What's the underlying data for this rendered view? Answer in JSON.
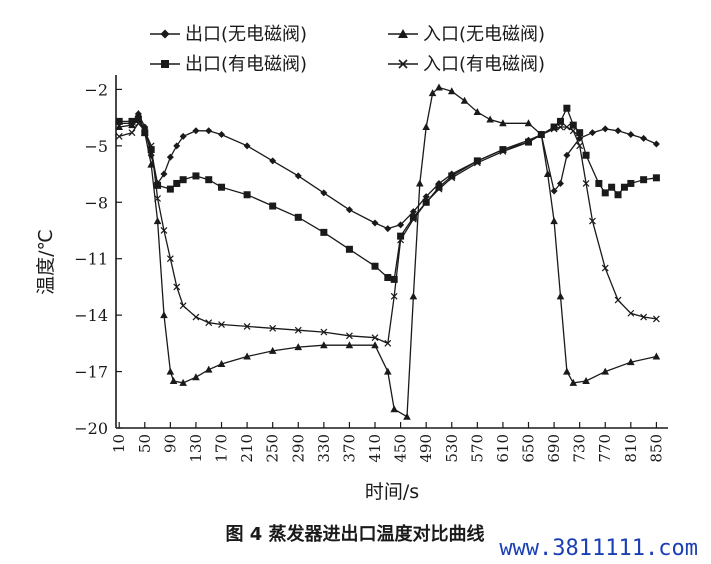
{
  "chart_data": {
    "type": "line",
    "caption": "图 4   蒸发器进出口温度对比曲线",
    "xlabel": "时间/s",
    "ylabel": "温度/℃",
    "xlim": [
      5,
      865
    ],
    "ylim": [
      -20,
      -1.5
    ],
    "yticks": [
      -2,
      -5,
      -8,
      -11,
      -14,
      -17,
      -20
    ],
    "xticks": [
      10,
      50,
      90,
      130,
      170,
      210,
      250,
      290,
      330,
      370,
      410,
      450,
      490,
      530,
      570,
      610,
      650,
      690,
      730,
      770,
      810,
      850
    ],
    "grid": false,
    "legend_position": "top-center",
    "series": [
      {
        "name": "出口(无电磁阀)",
        "marker": "diamond",
        "points": [
          [
            10,
            -3.8
          ],
          [
            30,
            -3.8
          ],
          [
            40,
            -3.3
          ],
          [
            50,
            -4.0
          ],
          [
            60,
            -5.5
          ],
          [
            70,
            -7.0
          ],
          [
            80,
            -6.5
          ],
          [
            90,
            -5.6
          ],
          [
            100,
            -5.0
          ],
          [
            110,
            -4.5
          ],
          [
            130,
            -4.2
          ],
          [
            150,
            -4.2
          ],
          [
            170,
            -4.4
          ],
          [
            210,
            -5.0
          ],
          [
            250,
            -5.8
          ],
          [
            290,
            -6.6
          ],
          [
            330,
            -7.5
          ],
          [
            370,
            -8.4
          ],
          [
            410,
            -9.1
          ],
          [
            430,
            -9.4
          ],
          [
            450,
            -9.2
          ],
          [
            470,
            -8.5
          ],
          [
            490,
            -7.7
          ],
          [
            510,
            -7.0
          ],
          [
            530,
            -6.5
          ],
          [
            570,
            -5.8
          ],
          [
            610,
            -5.2
          ],
          [
            650,
            -4.7
          ],
          [
            670,
            -4.4
          ],
          [
            690,
            -7.4
          ],
          [
            700,
            -7.0
          ],
          [
            710,
            -5.5
          ],
          [
            730,
            -4.6
          ],
          [
            750,
            -4.3
          ],
          [
            770,
            -4.1
          ],
          [
            790,
            -4.2
          ],
          [
            810,
            -4.4
          ],
          [
            830,
            -4.6
          ],
          [
            850,
            -4.9
          ]
        ]
      },
      {
        "name": "入口(无电磁阀)",
        "marker": "triangle",
        "points": [
          [
            10,
            -4.0
          ],
          [
            30,
            -3.9
          ],
          [
            40,
            -3.3
          ],
          [
            50,
            -4.3
          ],
          [
            60,
            -6.0
          ],
          [
            70,
            -9.0
          ],
          [
            80,
            -14.0
          ],
          [
            90,
            -17.0
          ],
          [
            95,
            -17.5
          ],
          [
            110,
            -17.6
          ],
          [
            130,
            -17.3
          ],
          [
            150,
            -16.9
          ],
          [
            170,
            -16.6
          ],
          [
            210,
            -16.2
          ],
          [
            250,
            -15.9
          ],
          [
            290,
            -15.7
          ],
          [
            330,
            -15.6
          ],
          [
            370,
            -15.6
          ],
          [
            410,
            -15.6
          ],
          [
            430,
            -17.0
          ],
          [
            440,
            -19.0
          ],
          [
            460,
            -19.4
          ],
          [
            470,
            -13.0
          ],
          [
            480,
            -7.0
          ],
          [
            490,
            -4.0
          ],
          [
            500,
            -2.2
          ],
          [
            510,
            -1.9
          ],
          [
            530,
            -2.1
          ],
          [
            550,
            -2.6
          ],
          [
            570,
            -3.2
          ],
          [
            590,
            -3.6
          ],
          [
            610,
            -3.8
          ],
          [
            650,
            -3.8
          ],
          [
            670,
            -4.4
          ],
          [
            680,
            -6.5
          ],
          [
            690,
            -9.0
          ],
          [
            700,
            -13.0
          ],
          [
            710,
            -17.0
          ],
          [
            720,
            -17.6
          ],
          [
            740,
            -17.5
          ],
          [
            770,
            -17.0
          ],
          [
            810,
            -16.5
          ],
          [
            850,
            -16.2
          ]
        ]
      },
      {
        "name": "出口(有电磁阀)",
        "marker": "square",
        "points": [
          [
            10,
            -3.7
          ],
          [
            30,
            -3.7
          ],
          [
            40,
            -3.6
          ],
          [
            50,
            -4.3
          ],
          [
            60,
            -5.2
          ],
          [
            70,
            -7.1
          ],
          [
            90,
            -7.3
          ],
          [
            100,
            -7.0
          ],
          [
            110,
            -6.8
          ],
          [
            130,
            -6.6
          ],
          [
            150,
            -6.8
          ],
          [
            170,
            -7.2
          ],
          [
            210,
            -7.6
          ],
          [
            250,
            -8.2
          ],
          [
            290,
            -8.8
          ],
          [
            330,
            -9.6
          ],
          [
            370,
            -10.5
          ],
          [
            410,
            -11.4
          ],
          [
            430,
            -12.0
          ],
          [
            440,
            -12.1
          ],
          [
            450,
            -9.8
          ],
          [
            470,
            -8.8
          ],
          [
            490,
            -8.0
          ],
          [
            510,
            -7.2
          ],
          [
            530,
            -6.6
          ],
          [
            570,
            -5.8
          ],
          [
            610,
            -5.2
          ],
          [
            650,
            -4.8
          ],
          [
            670,
            -4.4
          ],
          [
            690,
            -4.0
          ],
          [
            700,
            -3.7
          ],
          [
            710,
            -3.0
          ],
          [
            720,
            -3.9
          ],
          [
            730,
            -4.3
          ],
          [
            740,
            -5.5
          ],
          [
            760,
            -7.0
          ],
          [
            770,
            -7.5
          ],
          [
            780,
            -7.2
          ],
          [
            790,
            -7.6
          ],
          [
            800,
            -7.2
          ],
          [
            810,
            -7.0
          ],
          [
            830,
            -6.8
          ],
          [
            850,
            -6.7
          ]
        ]
      },
      {
        "name": "入口(有电磁阀)",
        "marker": "x",
        "points": [
          [
            10,
            -4.5
          ],
          [
            30,
            -4.3
          ],
          [
            40,
            -3.8
          ],
          [
            50,
            -4.2
          ],
          [
            60,
            -5.0
          ],
          [
            70,
            -7.8
          ],
          [
            80,
            -9.5
          ],
          [
            90,
            -11.0
          ],
          [
            100,
            -12.5
          ],
          [
            110,
            -13.5
          ],
          [
            130,
            -14.1
          ],
          [
            150,
            -14.4
          ],
          [
            170,
            -14.5
          ],
          [
            210,
            -14.6
          ],
          [
            250,
            -14.7
          ],
          [
            290,
            -14.8
          ],
          [
            330,
            -14.9
          ],
          [
            370,
            -15.1
          ],
          [
            410,
            -15.2
          ],
          [
            430,
            -15.5
          ],
          [
            440,
            -13.0
          ],
          [
            450,
            -10.0
          ],
          [
            470,
            -8.9
          ],
          [
            490,
            -8.0
          ],
          [
            510,
            -7.3
          ],
          [
            530,
            -6.7
          ],
          [
            570,
            -5.9
          ],
          [
            610,
            -5.3
          ],
          [
            650,
            -4.8
          ],
          [
            670,
            -4.4
          ],
          [
            690,
            -4.1
          ],
          [
            700,
            -4.0
          ],
          [
            710,
            -4.0
          ],
          [
            720,
            -4.2
          ],
          [
            730,
            -5.0
          ],
          [
            740,
            -7.0
          ],
          [
            750,
            -9.0
          ],
          [
            770,
            -11.5
          ],
          [
            790,
            -13.2
          ],
          [
            810,
            -13.9
          ],
          [
            830,
            -14.1
          ],
          [
            850,
            -14.2
          ]
        ]
      }
    ]
  },
  "watermark": "www.3811111.com",
  "colors": {
    "ink": "#1a1a1a",
    "watermark": "#1a3fb5"
  }
}
